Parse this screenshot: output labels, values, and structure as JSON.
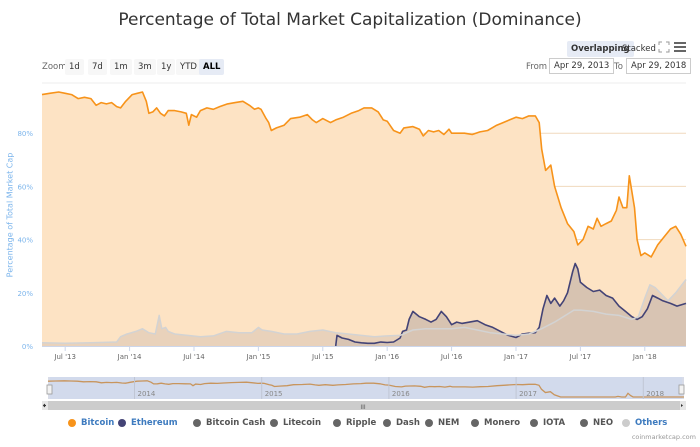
{
  "header": {
    "title": "Percentage of Total Market Capitalization (Dominance)",
    "mode_buttons": [
      {
        "label": "Overlapping",
        "active": true
      },
      {
        "label": "Stacked",
        "active": false
      }
    ],
    "fullscreen_icon": "fullscreen-icon",
    "menu_icon": "hamburger-menu-icon"
  },
  "range_selector": {
    "zoom_label": "Zoom",
    "buttons": [
      {
        "label": "1d",
        "active": false
      },
      {
        "label": "7d",
        "active": false
      },
      {
        "label": "1m",
        "active": false
      },
      {
        "label": "3m",
        "active": false
      },
      {
        "label": "1y",
        "active": false
      },
      {
        "label": "YTD",
        "active": false
      },
      {
        "label": "ALL",
        "active": true
      }
    ],
    "from_label": "From",
    "from_value": "Apr 29, 2013",
    "to_label": "To",
    "to_value": "Apr 29, 2018"
  },
  "credit": "coinmarketcap.com",
  "navigator": {
    "labels": [
      "2014",
      "2015",
      "2016",
      "2017",
      "2018"
    ]
  },
  "colors": {
    "bitcoin": "#f7931a",
    "bitcoin_fill": "#fde3c4",
    "ethereum": "#434376",
    "others": "#d3d3d3",
    "axis_label": "#7cb5ec",
    "legend_inactive": "#666666"
  },
  "chart_data": {
    "type": "area",
    "title": "Percentage of Total Market Capitalization (Dominance)",
    "xlabel": "",
    "ylabel": "Percentage of Total Market Cap",
    "x_range": [
      "2013-04-29",
      "2018-04-29"
    ],
    "x_domain_decimal_year": [
      2013.32,
      2018.32
    ],
    "ylim": [
      0,
      100
    ],
    "y_ticks": [
      0,
      20,
      40,
      60,
      80
    ],
    "y_tick_labels": [
      "0%",
      "20%",
      "40%",
      "60%",
      "80%"
    ],
    "x_ticks": [
      2013.5,
      2014.0,
      2014.5,
      2015.0,
      2015.5,
      2016.0,
      2016.5,
      2017.0,
      2017.5,
      2018.0
    ],
    "x_tick_labels": [
      "Jul '13",
      "Jan '14",
      "Jul '14",
      "Jan '15",
      "Jul '15",
      "Jan '16",
      "Jul '16",
      "Jan '17",
      "Jul '17",
      "Jan '18"
    ],
    "grid": true,
    "legend_position": "bottom",
    "legend": [
      {
        "name": "Bitcoin",
        "color": "#f7931a",
        "visible": true
      },
      {
        "name": "Ethereum",
        "color": "#434376",
        "visible": true
      },
      {
        "name": "Bitcoin Cash",
        "color": "#666666",
        "visible": false
      },
      {
        "name": "Litecoin",
        "color": "#666666",
        "visible": false
      },
      {
        "name": "Ripple",
        "color": "#666666",
        "visible": false
      },
      {
        "name": "Dash",
        "color": "#666666",
        "visible": false
      },
      {
        "name": "NEM",
        "color": "#666666",
        "visible": false
      },
      {
        "name": "Monero",
        "color": "#666666",
        "visible": false
      },
      {
        "name": "IOTA",
        "color": "#666666",
        "visible": false
      },
      {
        "name": "NEO",
        "color": "#666666",
        "visible": false
      },
      {
        "name": "Others",
        "color": "#cccccc",
        "visible": true
      }
    ],
    "series": [
      {
        "name": "Bitcoin",
        "color": "#f7931a",
        "points": [
          [
            2013.32,
            94.5
          ],
          [
            2013.38,
            95
          ],
          [
            2013.45,
            95.5
          ],
          [
            2013.5,
            95
          ],
          [
            2013.55,
            94.5
          ],
          [
            2013.6,
            93
          ],
          [
            2013.65,
            93.5
          ],
          [
            2013.7,
            93
          ],
          [
            2013.74,
            90.5
          ],
          [
            2013.78,
            91.5
          ],
          [
            2013.82,
            91
          ],
          [
            2013.86,
            91.5
          ],
          [
            2013.9,
            90
          ],
          [
            2013.93,
            89.5
          ],
          [
            2013.97,
            92
          ],
          [
            2014.02,
            94.5
          ],
          [
            2014.06,
            95
          ],
          [
            2014.1,
            95.5
          ],
          [
            2014.13,
            92
          ],
          [
            2014.15,
            87.5
          ],
          [
            2014.18,
            88
          ],
          [
            2014.21,
            89.5
          ],
          [
            2014.24,
            87.5
          ],
          [
            2014.27,
            86.5
          ],
          [
            2014.3,
            88.5
          ],
          [
            2014.35,
            88.5
          ],
          [
            2014.4,
            88
          ],
          [
            2014.44,
            87.5
          ],
          [
            2014.46,
            83
          ],
          [
            2014.48,
            87
          ],
          [
            2014.52,
            86
          ],
          [
            2014.55,
            88.5
          ],
          [
            2014.6,
            89.5
          ],
          [
            2014.65,
            89
          ],
          [
            2014.7,
            90
          ],
          [
            2014.76,
            91
          ],
          [
            2014.82,
            91.5
          ],
          [
            2014.88,
            92
          ],
          [
            2014.93,
            90.5
          ],
          [
            2014.97,
            89
          ],
          [
            2015.0,
            89.5
          ],
          [
            2015.02,
            89
          ],
          [
            2015.06,
            85.5
          ],
          [
            2015.08,
            84
          ],
          [
            2015.1,
            81
          ],
          [
            2015.14,
            82
          ],
          [
            2015.2,
            83
          ],
          [
            2015.25,
            85.5
          ],
          [
            2015.32,
            86
          ],
          [
            2015.38,
            87
          ],
          [
            2015.42,
            85
          ],
          [
            2015.45,
            84
          ],
          [
            2015.5,
            85.5
          ],
          [
            2015.56,
            84
          ],
          [
            2015.6,
            85
          ],
          [
            2015.66,
            86
          ],
          [
            2015.72,
            87.5
          ],
          [
            2015.78,
            88.5
          ],
          [
            2015.82,
            89.5
          ],
          [
            2015.88,
            89.5
          ],
          [
            2015.93,
            88
          ],
          [
            2015.97,
            85
          ],
          [
            2016.0,
            84.5
          ],
          [
            2016.05,
            81
          ],
          [
            2016.1,
            80
          ],
          [
            2016.13,
            82
          ],
          [
            2016.2,
            82.5
          ],
          [
            2016.25,
            81.5
          ],
          [
            2016.28,
            79
          ],
          [
            2016.32,
            81
          ],
          [
            2016.36,
            80.5
          ],
          [
            2016.4,
            81
          ],
          [
            2016.44,
            79.5
          ],
          [
            2016.48,
            81.5
          ],
          [
            2016.5,
            80
          ],
          [
            2016.55,
            80
          ],
          [
            2016.6,
            80
          ],
          [
            2016.66,
            79.5
          ],
          [
            2016.72,
            80.5
          ],
          [
            2016.78,
            81
          ],
          [
            2016.85,
            83
          ],
          [
            2016.9,
            84
          ],
          [
            2016.95,
            85
          ],
          [
            2017.0,
            86
          ],
          [
            2017.05,
            85.5
          ],
          [
            2017.1,
            86.5
          ],
          [
            2017.15,
            86.5
          ],
          [
            2017.18,
            84
          ],
          [
            2017.2,
            74
          ],
          [
            2017.23,
            66
          ],
          [
            2017.27,
            68
          ],
          [
            2017.3,
            60
          ],
          [
            2017.35,
            52
          ],
          [
            2017.4,
            46
          ],
          [
            2017.45,
            43
          ],
          [
            2017.48,
            38
          ],
          [
            2017.52,
            40
          ],
          [
            2017.56,
            45
          ],
          [
            2017.6,
            44
          ],
          [
            2017.63,
            48
          ],
          [
            2017.66,
            45
          ],
          [
            2017.7,
            46
          ],
          [
            2017.74,
            47
          ],
          [
            2017.78,
            51
          ],
          [
            2017.8,
            56
          ],
          [
            2017.83,
            52
          ],
          [
            2017.86,
            52
          ],
          [
            2017.88,
            64
          ],
          [
            2017.9,
            58
          ],
          [
            2017.92,
            52
          ],
          [
            2017.94,
            40
          ],
          [
            2017.97,
            34
          ],
          [
            2018.0,
            35
          ],
          [
            2018.05,
            33.5
          ],
          [
            2018.1,
            38
          ],
          [
            2018.15,
            41
          ],
          [
            2018.2,
            44
          ],
          [
            2018.24,
            45
          ],
          [
            2018.28,
            42
          ],
          [
            2018.32,
            37.5
          ]
        ]
      },
      {
        "name": "Ethereum",
        "color": "#434376",
        "points": [
          [
            2015.6,
            0
          ],
          [
            2015.61,
            4
          ],
          [
            2015.65,
            3
          ],
          [
            2015.7,
            2.5
          ],
          [
            2015.75,
            1.5
          ],
          [
            2015.8,
            1.2
          ],
          [
            2015.85,
            1
          ],
          [
            2015.9,
            1
          ],
          [
            2015.95,
            1.5
          ],
          [
            2016.0,
            1.3
          ],
          [
            2016.05,
            1.5
          ],
          [
            2016.1,
            3
          ],
          [
            2016.12,
            5.5
          ],
          [
            2016.15,
            6
          ],
          [
            2016.17,
            10
          ],
          [
            2016.2,
            13
          ],
          [
            2016.25,
            11
          ],
          [
            2016.3,
            10
          ],
          [
            2016.34,
            9
          ],
          [
            2016.38,
            10
          ],
          [
            2016.42,
            13
          ],
          [
            2016.46,
            11
          ],
          [
            2016.5,
            8
          ],
          [
            2016.54,
            9
          ],
          [
            2016.58,
            8.5
          ],
          [
            2016.64,
            9
          ],
          [
            2016.7,
            9.5
          ],
          [
            2016.76,
            8
          ],
          [
            2016.82,
            7
          ],
          [
            2016.88,
            5.5
          ],
          [
            2016.94,
            4
          ],
          [
            2017.0,
            3.2
          ],
          [
            2017.05,
            4.5
          ],
          [
            2017.1,
            4.8
          ],
          [
            2017.15,
            5
          ],
          [
            2017.18,
            7
          ],
          [
            2017.21,
            14
          ],
          [
            2017.24,
            19
          ],
          [
            2017.27,
            16
          ],
          [
            2017.3,
            18
          ],
          [
            2017.34,
            15
          ],
          [
            2017.37,
            17
          ],
          [
            2017.4,
            20
          ],
          [
            2017.44,
            28
          ],
          [
            2017.46,
            31
          ],
          [
            2017.48,
            29
          ],
          [
            2017.5,
            24
          ],
          [
            2017.55,
            22
          ],
          [
            2017.6,
            20.5
          ],
          [
            2017.65,
            21
          ],
          [
            2017.7,
            19
          ],
          [
            2017.75,
            18
          ],
          [
            2017.8,
            15
          ],
          [
            2017.85,
            13
          ],
          [
            2017.9,
            11
          ],
          [
            2017.94,
            10
          ],
          [
            2017.98,
            11
          ],
          [
            2018.02,
            14
          ],
          [
            2018.06,
            19
          ],
          [
            2018.1,
            18
          ],
          [
            2018.14,
            17
          ],
          [
            2018.2,
            16
          ],
          [
            2018.25,
            15
          ],
          [
            2018.32,
            16
          ]
        ]
      },
      {
        "name": "Others",
        "color": "#d3d3d3",
        "points": [
          [
            2013.32,
            1.2
          ],
          [
            2013.5,
            1
          ],
          [
            2013.7,
            1.2
          ],
          [
            2013.9,
            1.5
          ],
          [
            2013.93,
            3.5
          ],
          [
            2013.98,
            4.5
          ],
          [
            2014.05,
            5.5
          ],
          [
            2014.1,
            6.5
          ],
          [
            2014.15,
            5
          ],
          [
            2014.2,
            4.5
          ],
          [
            2014.23,
            11.5
          ],
          [
            2014.25,
            6.5
          ],
          [
            2014.28,
            7
          ],
          [
            2014.3,
            5.5
          ],
          [
            2014.35,
            4.5
          ],
          [
            2014.45,
            4
          ],
          [
            2014.55,
            3.5
          ],
          [
            2014.65,
            3.8
          ],
          [
            2014.75,
            5.5
          ],
          [
            2014.85,
            5
          ],
          [
            2014.95,
            5
          ],
          [
            2015.0,
            7
          ],
          [
            2015.03,
            6
          ],
          [
            2015.1,
            5.5
          ],
          [
            2015.2,
            4.5
          ],
          [
            2015.3,
            4.5
          ],
          [
            2015.4,
            5.5
          ],
          [
            2015.5,
            6
          ],
          [
            2015.6,
            5
          ],
          [
            2015.7,
            4.5
          ],
          [
            2015.8,
            4
          ],
          [
            2015.9,
            3.5
          ],
          [
            2016.0,
            3.8
          ],
          [
            2016.1,
            4
          ],
          [
            2016.2,
            6
          ],
          [
            2016.3,
            6.5
          ],
          [
            2016.4,
            6.5
          ],
          [
            2016.5,
            6.5
          ],
          [
            2016.6,
            7
          ],
          [
            2016.7,
            6
          ],
          [
            2016.8,
            5
          ],
          [
            2016.9,
            4.5
          ],
          [
            2017.0,
            4
          ],
          [
            2017.1,
            4.5
          ],
          [
            2017.2,
            6.5
          ],
          [
            2017.3,
            9
          ],
          [
            2017.4,
            12
          ],
          [
            2017.45,
            13.5
          ],
          [
            2017.5,
            13.5
          ],
          [
            2017.6,
            13
          ],
          [
            2017.7,
            12
          ],
          [
            2017.8,
            11.5
          ],
          [
            2017.9,
            10
          ],
          [
            2017.95,
            11
          ],
          [
            2018.0,
            18
          ],
          [
            2018.04,
            23
          ],
          [
            2018.08,
            22
          ],
          [
            2018.12,
            20
          ],
          [
            2018.18,
            17
          ],
          [
            2018.24,
            20
          ],
          [
            2018.32,
            25
          ]
        ]
      }
    ],
    "navigator_series": "Bitcoin"
  }
}
